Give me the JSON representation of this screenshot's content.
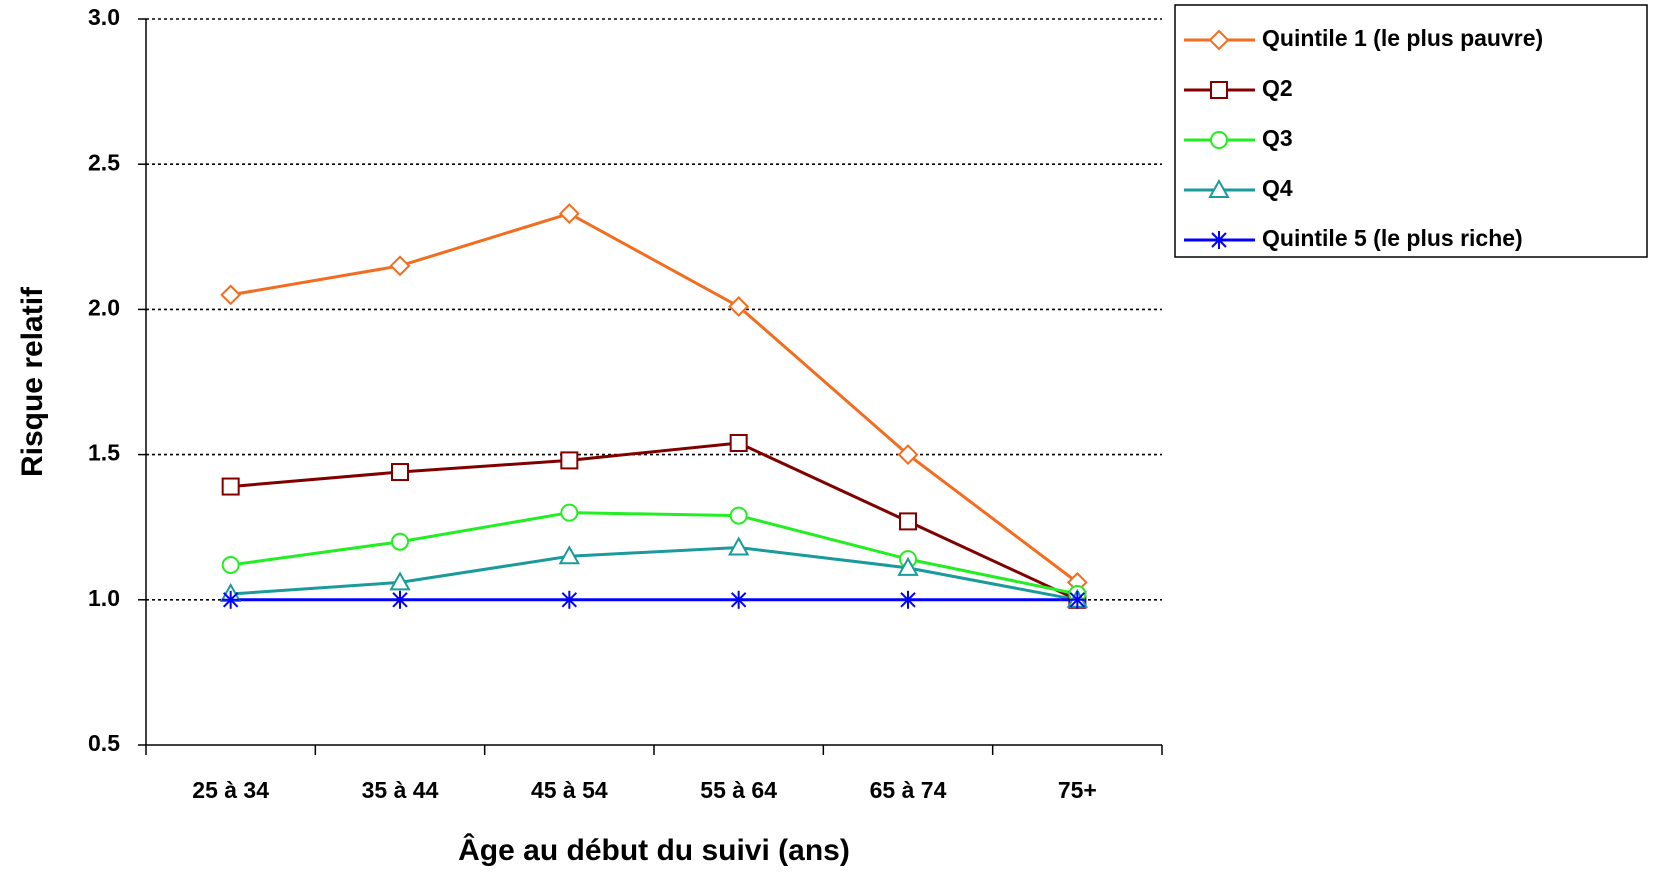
{
  "chart_data": {
    "type": "line",
    "categories": [
      "25 à 34",
      "35 à 44",
      "45 à 54",
      "55 à 64",
      "65 à 74",
      "75+"
    ],
    "x_label": "Âge au début du suivi (ans)",
    "y_label": "Risque relatif",
    "ylim": [
      0.5,
      3.0
    ],
    "yticks": [
      0.5,
      {
        "value": 1.0,
        "label": "1.0"
      },
      1.5,
      {
        "value": 2.0,
        "label": "2.0"
      },
      2.5,
      {
        "value": 3.0,
        "label": "3.0"
      }
    ],
    "grid": true,
    "legend": "right",
    "series": [
      {
        "name": "Quintile 1 (le plus pauvre)",
        "color": "#f26d1f",
        "marker": "diamond",
        "values": [
          2.05,
          2.15,
          2.33,
          2.01,
          1.5,
          1.06
        ]
      },
      {
        "name": "Q2",
        "color": "#800000",
        "marker": "square",
        "values": [
          1.39,
          1.44,
          1.48,
          1.54,
          1.27,
          1.0
        ]
      },
      {
        "name": "Q3",
        "color": "#22ee22",
        "marker": "circle",
        "values": [
          1.12,
          1.2,
          1.3,
          1.29,
          1.14,
          1.02
        ]
      },
      {
        "name": "Q4",
        "color": "#1a9a9a",
        "marker": "triangle",
        "values": [
          1.02,
          1.06,
          1.15,
          1.18,
          1.11,
          1.0
        ]
      },
      {
        "name": "Quintile 5 (le plus riche)",
        "color": "#0000ff",
        "marker": "asterisk",
        "values": [
          1.0,
          1.0,
          1.0,
          1.0,
          1.0,
          1.0
        ]
      }
    ]
  }
}
